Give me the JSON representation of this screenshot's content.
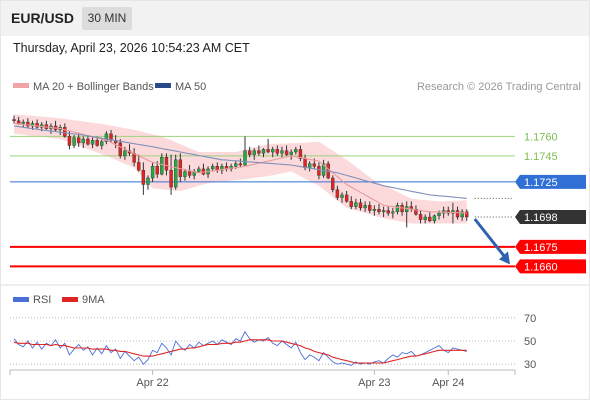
{
  "header": {
    "symbol": "EUR/USD",
    "timeframe": "30 MIN"
  },
  "datetime": "Thursday, April 23, 2026 10:54:23 AM CET",
  "legend": {
    "bb_label": "MA 20 + Bollinger Bands",
    "ma50_label": "MA 50",
    "credit": "Research © 2026 Trading Central"
  },
  "rsi_legend": {
    "rsi_label": "RSI",
    "ma_label": "9MA"
  },
  "colors": {
    "up_candle": "#22aa44",
    "down_candle": "#e02424",
    "bb_fill": "#fbd4d6",
    "ma20": "#e99a9c",
    "ma50": "#8090bb",
    "support": "#ff0000",
    "resistance_green": "#9ed27a",
    "pivot_blue": "#2f6fd6",
    "last_price_bg": "#333333",
    "rsi_line": "#4a6fd6",
    "rsi_ma": "#e02424"
  },
  "chart_data": [
    {
      "type": "candlestick",
      "title": "EUR/USD",
      "timeframe": "30 MIN",
      "ylim": [
        1.1648,
        1.1788
      ],
      "x_ticks": [
        {
          "label": "Apr 22",
          "index": 30
        },
        {
          "label": "Apr 23",
          "index": 78
        },
        {
          "label": "Apr 24",
          "index": 94
        }
      ],
      "ohlc": [
        [
          1.1773,
          1.1776,
          1.177,
          1.1772
        ],
        [
          1.1772,
          1.1775,
          1.1769,
          1.177
        ],
        [
          1.177,
          1.1773,
          1.1767,
          1.1771
        ],
        [
          1.1771,
          1.1774,
          1.1766,
          1.1768
        ],
        [
          1.1768,
          1.1772,
          1.1765,
          1.177
        ],
        [
          1.177,
          1.1773,
          1.1766,
          1.1767
        ],
        [
          1.1767,
          1.1771,
          1.1764,
          1.1769
        ],
        [
          1.1769,
          1.1772,
          1.1765,
          1.1766
        ],
        [
          1.1766,
          1.177,
          1.1762,
          1.1768
        ],
        [
          1.1768,
          1.1772,
          1.1764,
          1.1765
        ],
        [
          1.1765,
          1.1769,
          1.1761,
          1.1767
        ],
        [
          1.1767,
          1.177,
          1.1759,
          1.176
        ],
        [
          1.176,
          1.1764,
          1.175,
          1.1753
        ],
        [
          1.1753,
          1.1761,
          1.1751,
          1.1759
        ],
        [
          1.1759,
          1.1763,
          1.1752,
          1.1755
        ],
        [
          1.1755,
          1.176,
          1.1751,
          1.1758
        ],
        [
          1.1758,
          1.1761,
          1.1753,
          1.1754
        ],
        [
          1.1754,
          1.1759,
          1.1751,
          1.1757
        ],
        [
          1.1757,
          1.176,
          1.1752,
          1.1753
        ],
        [
          1.1753,
          1.1758,
          1.175,
          1.1756
        ],
        [
          1.1756,
          1.1764,
          1.1754,
          1.1762
        ],
        [
          1.1762,
          1.1765,
          1.1755,
          1.1757
        ],
        [
          1.1757,
          1.1761,
          1.1751,
          1.1755
        ],
        [
          1.1755,
          1.1758,
          1.1743,
          1.1745
        ],
        [
          1.1745,
          1.1752,
          1.1742,
          1.1749
        ],
        [
          1.1749,
          1.1754,
          1.1745,
          1.1747
        ],
        [
          1.1747,
          1.1751,
          1.1737,
          1.174
        ],
        [
          1.174,
          1.1746,
          1.1733,
          1.1734
        ],
        [
          1.1734,
          1.174,
          1.1715,
          1.1723
        ],
        [
          1.1723,
          1.173,
          1.1719,
          1.1728
        ],
        [
          1.1728,
          1.174,
          1.1725,
          1.1737
        ],
        [
          1.1737,
          1.1741,
          1.1728,
          1.1731
        ],
        [
          1.1731,
          1.1747,
          1.173,
          1.1744
        ],
        [
          1.1744,
          1.1747,
          1.173,
          1.1734
        ],
        [
          1.1734,
          1.1746,
          1.1715,
          1.1721
        ],
        [
          1.1721,
          1.1746,
          1.1719,
          1.1742
        ],
        [
          1.1742,
          1.1747,
          1.1725,
          1.1729
        ],
        [
          1.1729,
          1.1735,
          1.1726,
          1.1733
        ],
        [
          1.1733,
          1.1738,
          1.1728,
          1.173
        ],
        [
          1.173,
          1.1735,
          1.1727,
          1.1733
        ],
        [
          1.1733,
          1.1737,
          1.1732,
          1.1735
        ],
        [
          1.1735,
          1.1739,
          1.173,
          1.1731
        ],
        [
          1.1731,
          1.1737,
          1.1728,
          1.1735
        ],
        [
          1.1735,
          1.1739,
          1.1733,
          1.1737
        ],
        [
          1.1737,
          1.174,
          1.1732,
          1.1734
        ],
        [
          1.1734,
          1.1739,
          1.1731,
          1.1737
        ],
        [
          1.1737,
          1.174,
          1.1733,
          1.1735
        ],
        [
          1.1735,
          1.1739,
          1.1733,
          1.1737
        ],
        [
          1.1737,
          1.1741,
          1.1735,
          1.1739
        ],
        [
          1.1739,
          1.1743,
          1.1736,
          1.1738
        ],
        [
          1.1738,
          1.176,
          1.1737,
          1.1749
        ],
        [
          1.1749,
          1.1752,
          1.1744,
          1.1746
        ],
        [
          1.1746,
          1.1751,
          1.1742,
          1.1749
        ],
        [
          1.1749,
          1.1753,
          1.1745,
          1.1747
        ],
        [
          1.1747,
          1.1751,
          1.1744,
          1.175
        ],
        [
          1.175,
          1.1758,
          1.1747,
          1.1748
        ],
        [
          1.1748,
          1.1752,
          1.1744,
          1.175
        ],
        [
          1.175,
          1.1753,
          1.1745,
          1.1747
        ],
        [
          1.1747,
          1.1752,
          1.1744,
          1.1749
        ],
        [
          1.1749,
          1.1753,
          1.1745,
          1.1746
        ],
        [
          1.1746,
          1.175,
          1.1742,
          1.1748
        ],
        [
          1.1748,
          1.1752,
          1.1746,
          1.175
        ],
        [
          1.175,
          1.1753,
          1.1741,
          1.1743
        ],
        [
          1.1743,
          1.1746,
          1.1734,
          1.1736
        ],
        [
          1.1736,
          1.1741,
          1.1733,
          1.1739
        ],
        [
          1.1739,
          1.1743,
          1.1735,
          1.1737
        ],
        [
          1.1737,
          1.174,
          1.1727,
          1.173
        ],
        [
          1.173,
          1.1742,
          1.1728,
          1.1739
        ],
        [
          1.1739,
          1.1741,
          1.1727,
          1.1728
        ],
        [
          1.1728,
          1.173,
          1.1717,
          1.1719
        ],
        [
          1.1719,
          1.1722,
          1.1711,
          1.1713
        ],
        [
          1.1713,
          1.1717,
          1.1709,
          1.1715
        ],
        [
          1.1715,
          1.1718,
          1.1709,
          1.171
        ],
        [
          1.171,
          1.1714,
          1.1704,
          1.1706
        ],
        [
          1.1706,
          1.1712,
          1.1704,
          1.1709
        ],
        [
          1.1709,
          1.1712,
          1.1703,
          1.1705
        ],
        [
          1.1705,
          1.171,
          1.1702,
          1.1707
        ],
        [
          1.1707,
          1.171,
          1.1701,
          1.1703
        ],
        [
          1.1703,
          1.1707,
          1.1699,
          1.1704
        ],
        [
          1.1704,
          1.1708,
          1.17,
          1.1702
        ],
        [
          1.1702,
          1.1706,
          1.1698,
          1.1703
        ],
        [
          1.1703,
          1.1706,
          1.1699,
          1.1701
        ],
        [
          1.1701,
          1.1705,
          1.1697,
          1.1702
        ],
        [
          1.1702,
          1.1709,
          1.17,
          1.1707
        ],
        [
          1.1707,
          1.1709,
          1.1699,
          1.1702
        ],
        [
          1.1702,
          1.171,
          1.169,
          1.1706
        ],
        [
          1.1706,
          1.171,
          1.1702,
          1.1704
        ],
        [
          1.1704,
          1.1707,
          1.1699,
          1.17
        ],
        [
          1.17,
          1.1703,
          1.1693,
          1.1696
        ],
        [
          1.1696,
          1.17,
          1.1693,
          1.1698
        ],
        [
          1.1698,
          1.1702,
          1.1694,
          1.1695
        ],
        [
          1.1695,
          1.17,
          1.1693,
          1.1699
        ],
        [
          1.1699,
          1.1703,
          1.1696,
          1.1701
        ],
        [
          1.1701,
          1.1706,
          1.1697,
          1.1703
        ],
        [
          1.1703,
          1.1706,
          1.1699,
          1.1701
        ],
        [
          1.1701,
          1.1709,
          1.1693,
          1.1703
        ],
        [
          1.1703,
          1.1706,
          1.1696,
          1.1698
        ],
        [
          1.1698,
          1.1704,
          1.1695,
          1.1702
        ],
        [
          1.1702,
          1.1704,
          1.1695,
          1.1698
        ]
      ],
      "ma50": [
        [
          0,
          1.1768
        ],
        [
          6,
          1.1765
        ],
        [
          15,
          1.1761
        ],
        [
          30,
          1.1752
        ],
        [
          45,
          1.1742
        ],
        [
          60,
          1.1738
        ],
        [
          70,
          1.1732
        ],
        [
          80,
          1.1722
        ],
        [
          90,
          1.1715
        ],
        [
          99,
          1.1712
        ]
      ],
      "ma20": [
        [
          0,
          1.177
        ],
        [
          10,
          1.1766
        ],
        [
          20,
          1.1757
        ],
        [
          30,
          1.174
        ],
        [
          40,
          1.1732
        ],
        [
          50,
          1.1737
        ],
        [
          60,
          1.1745
        ],
        [
          66,
          1.1741
        ],
        [
          72,
          1.1723
        ],
        [
          80,
          1.1707
        ],
        [
          90,
          1.1702
        ],
        [
          99,
          1.1701
        ]
      ],
      "bollinger_upper": [
        [
          0,
          1.1777
        ],
        [
          10,
          1.1774
        ],
        [
          20,
          1.1769
        ],
        [
          26,
          1.1765
        ],
        [
          32,
          1.176
        ],
        [
          40,
          1.1748
        ],
        [
          48,
          1.1748
        ],
        [
          55,
          1.1754
        ],
        [
          62,
          1.1755
        ],
        [
          66,
          1.1756
        ],
        [
          72,
          1.1742
        ],
        [
          78,
          1.1726
        ],
        [
          86,
          1.1712
        ],
        [
          92,
          1.171
        ],
        [
          99,
          1.1711
        ]
      ],
      "bollinger_lower": [
        [
          0,
          1.1762
        ],
        [
          10,
          1.1758
        ],
        [
          20,
          1.1745
        ],
        [
          26,
          1.1736
        ],
        [
          30,
          1.172
        ],
        [
          36,
          1.1718
        ],
        [
          42,
          1.1724
        ],
        [
          50,
          1.1727
        ],
        [
          56,
          1.173
        ],
        [
          60,
          1.1733
        ],
        [
          66,
          1.1722
        ],
        [
          72,
          1.1705
        ],
        [
          80,
          1.1697
        ],
        [
          86,
          1.1693
        ],
        [
          92,
          1.1693
        ],
        [
          99,
          1.1693
        ]
      ],
      "levels": [
        {
          "value": 1.176,
          "label": "1.1760",
          "kind": "resistance"
        },
        {
          "value": 1.1745,
          "label": "1.1745",
          "kind": "resistance"
        },
        {
          "value": 1.1725,
          "label": "1.1725",
          "kind": "pivot"
        },
        {
          "value": 1.1675,
          "label": "1.1675",
          "kind": "support"
        },
        {
          "value": 1.166,
          "label": "1.1660",
          "kind": "support"
        }
      ],
      "last_price": {
        "value": 1.1698,
        "label": "1.1698"
      },
      "forecast_arrow": {
        "from": 1.1698,
        "to": 1.166,
        "direction": "down"
      }
    },
    {
      "type": "line",
      "title": "RSI",
      "ylim": [
        25,
        75
      ],
      "y_ticks": [
        70,
        50,
        30
      ],
      "series": [
        {
          "name": "RSI",
          "values": [
            52,
            47,
            45,
            50,
            44,
            49,
            43,
            48,
            46,
            51,
            44,
            48,
            38,
            43,
            47,
            42,
            45,
            38,
            44,
            39,
            46,
            40,
            43,
            35,
            41,
            37,
            33,
            36,
            30,
            34,
            42,
            40,
            48,
            44,
            38,
            50,
            45,
            42,
            47,
            44,
            49,
            46,
            48,
            50,
            47,
            51,
            49,
            47,
            52,
            50,
            58,
            52,
            49,
            51,
            50,
            53,
            48,
            46,
            50,
            47,
            44,
            49,
            40,
            34,
            38,
            36,
            33,
            40,
            36,
            32,
            30,
            31,
            30,
            29,
            32,
            30,
            31,
            30,
            32,
            33,
            31,
            35,
            38,
            36,
            40,
            39,
            41,
            37,
            38,
            40,
            42,
            44,
            46,
            42,
            40,
            44,
            43,
            42,
            41
          ]
        },
        {
          "name": "9MA",
          "values": [
            49,
            48,
            48,
            48,
            47,
            47,
            47,
            47,
            46,
            47,
            46,
            46,
            45,
            44,
            44,
            44,
            44,
            43,
            43,
            43,
            43,
            42,
            42,
            41,
            41,
            40,
            39,
            38,
            37,
            37,
            37,
            38,
            39,
            40,
            41,
            42,
            43,
            43,
            44,
            44,
            45,
            46,
            47,
            47,
            47,
            48,
            48,
            48,
            49,
            49,
            50,
            51,
            51,
            51,
            51,
            51,
            50,
            50,
            50,
            49,
            48,
            47,
            46,
            44,
            43,
            41,
            40,
            39,
            38,
            36,
            35,
            34,
            33,
            32,
            31,
            31,
            31,
            31,
            31,
            31,
            31,
            32,
            33,
            34,
            35,
            36,
            37,
            37,
            38,
            39,
            40,
            41,
            42,
            42,
            42,
            42,
            42,
            42,
            42
          ]
        }
      ]
    }
  ]
}
